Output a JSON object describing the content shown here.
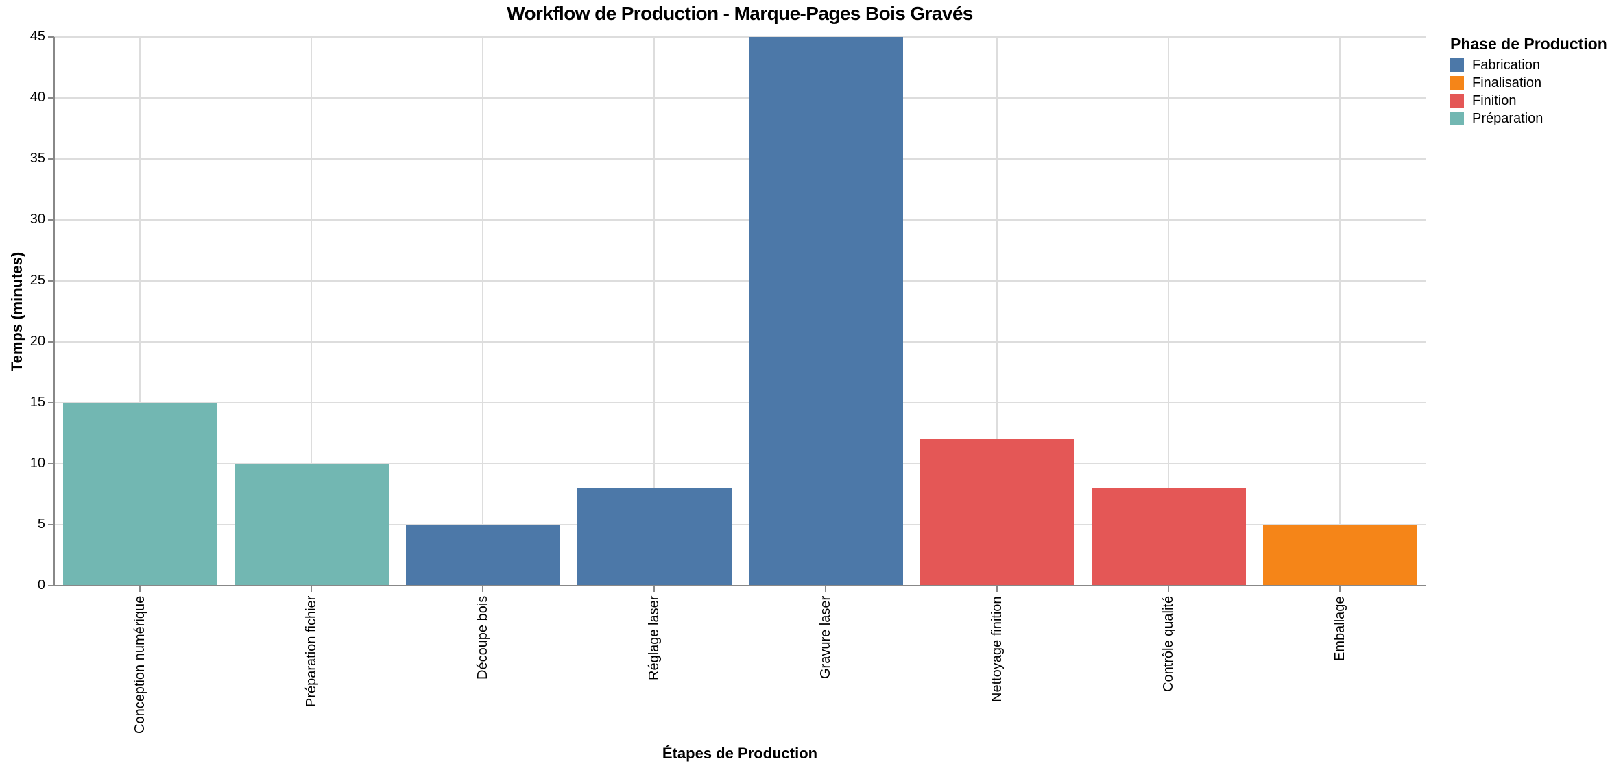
{
  "chart_data": {
    "type": "bar",
    "title": "Workflow de Production - Marque-Pages Bois Gravés",
    "xlabel": "Étapes de Production",
    "ylabel": "Temps (minutes)",
    "ylim": [
      0,
      45
    ],
    "yticks": [
      0,
      5,
      10,
      15,
      20,
      25,
      30,
      35,
      40,
      45
    ],
    "grid": true,
    "legend_position": "right",
    "legend_title": "Phase de Production",
    "categories": [
      "Conception numérique",
      "Préparation fichier",
      "Découpe bois",
      "Réglage laser",
      "Gravure laser",
      "Nettoyage finition",
      "Contrôle qualité",
      "Emballage"
    ],
    "values": [
      15,
      10,
      5,
      8,
      45,
      12,
      8,
      5
    ],
    "phases": [
      "Préparation",
      "Préparation",
      "Fabrication",
      "Fabrication",
      "Fabrication",
      "Finition",
      "Finition",
      "Finalisation"
    ],
    "legend": [
      {
        "label": "Fabrication",
        "color": "#4c78a8"
      },
      {
        "label": "Finalisation",
        "color": "#f58518"
      },
      {
        "label": "Finition",
        "color": "#e45756"
      },
      {
        "label": "Préparation",
        "color": "#72b7b2"
      }
    ]
  },
  "colors": {
    "Fabrication": "#4c78a8",
    "Finalisation": "#f58518",
    "Finition": "#e45756",
    "Préparation": "#72b7b2",
    "grid": "#dddddd",
    "axis": "#888888"
  }
}
